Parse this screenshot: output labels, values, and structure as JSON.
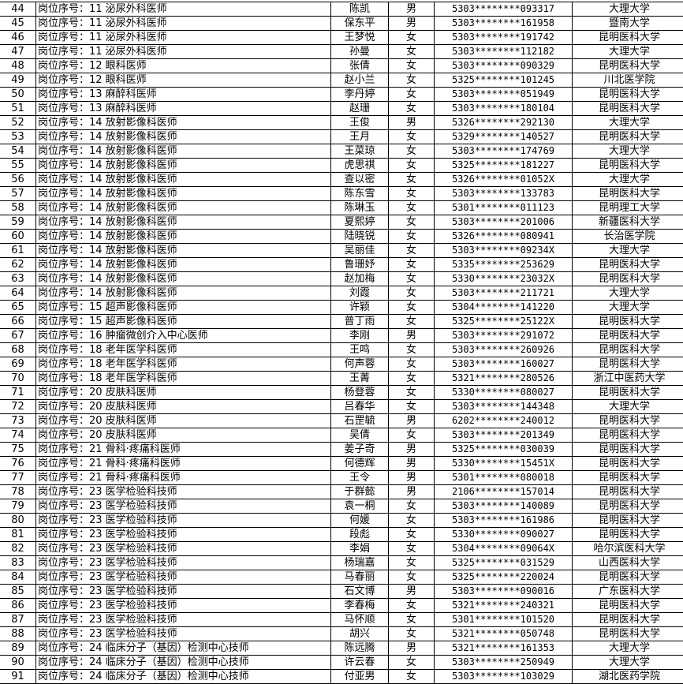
{
  "rows": [
    [
      "44",
      "岗位序号：11 泌尿外科医师",
      "陈凯",
      "男",
      "5303********093317",
      "大理大学"
    ],
    [
      "45",
      "岗位序号：11 泌尿外科医师",
      "保东平",
      "男",
      "5303********161958",
      "暨南大学"
    ],
    [
      "46",
      "岗位序号：11 泌尿外科医师",
      "王梦悦",
      "女",
      "5303********191742",
      "昆明医科大学"
    ],
    [
      "47",
      "岗位序号：11 泌尿外科医师",
      "孙曼",
      "女",
      "5303********112182",
      "大理大学"
    ],
    [
      "48",
      "岗位序号：12 眼科医师",
      "张倩",
      "女",
      "5303********090329",
      "昆明医科大学"
    ],
    [
      "49",
      "岗位序号：12 眼科医师",
      "赵小兰",
      "女",
      "5325********101245",
      "川北医学院"
    ],
    [
      "50",
      "岗位序号：13 麻醉科医师",
      "李丹婷",
      "女",
      "5303********051949",
      "昆明医科大学"
    ],
    [
      "51",
      "岗位序号：13 麻醉科医师",
      "赵珊",
      "女",
      "5303********180104",
      "昆明医科大学"
    ],
    [
      "52",
      "岗位序号：14 放射影像科医师",
      "王俊",
      "男",
      "5326********292130",
      "大理大学"
    ],
    [
      "53",
      "岗位序号：14 放射影像科医师",
      "王月",
      "女",
      "5329********140527",
      "昆明医科大学"
    ],
    [
      "54",
      "岗位序号：14 放射影像科医师",
      "王菜琼",
      "女",
      "5303********174769",
      "大理大学"
    ],
    [
      "55",
      "岗位序号：14 放射影像科医师",
      "虎思祺",
      "女",
      "5325********181227",
      "昆明医科大学"
    ],
    [
      "56",
      "岗位序号：14 放射影像科医师",
      "查以密",
      "女",
      "5326********01052X",
      "大理大学"
    ],
    [
      "57",
      "岗位序号：14 放射影像科医师",
      "陈东雪",
      "女",
      "5303********133783",
      "昆明医科大学"
    ],
    [
      "58",
      "岗位序号：14 放射影像科医师",
      "陈琳玉",
      "女",
      "5301********011123",
      "昆明理工大学"
    ],
    [
      "59",
      "岗位序号：14 放射影像科医师",
      "夏熙婷",
      "女",
      "5303********201006",
      "新疆医科大学"
    ],
    [
      "60",
      "岗位序号：14 放射影像科医师",
      "陆晓锐",
      "女",
      "5326********080941",
      "长治医学院"
    ],
    [
      "61",
      "岗位序号：14 放射影像科医师",
      "吴丽佳",
      "女",
      "5303********09234X",
      "大理大学"
    ],
    [
      "62",
      "岗位序号：14 放射影像科医师",
      "鲁珊妤",
      "女",
      "5335********253629",
      "昆明医科大学"
    ],
    [
      "63",
      "岗位序号：14 放射影像科医师",
      "赵加梅",
      "女",
      "5330********23032X",
      "昆明医科大学"
    ],
    [
      "64",
      "岗位序号：14 放射影像科医师",
      "刘霞",
      "女",
      "5303********211721",
      "大理大学"
    ],
    [
      "65",
      "岗位序号：15 超声影像科医师",
      "许颖",
      "女",
      "5304********141220",
      "大理大学"
    ],
    [
      "66",
      "岗位序号：15 超声影像科医师",
      "普丁雨",
      "女",
      "5325********25122X",
      "昆明医科大学"
    ],
    [
      "67",
      "岗位序号：16 肿瘤微创介入中心医师",
      "李刚",
      "男",
      "5303********291072",
      "昆明医科大学"
    ],
    [
      "68",
      "岗位序号：18 老年医学科医师",
      "王鸣",
      "女",
      "5303********260926",
      "昆明医科大学"
    ],
    [
      "69",
      "岗位序号：18 老年医学科医师",
      "何声蓉",
      "女",
      "5303********160027",
      "昆明医科大学"
    ],
    [
      "70",
      "岗位序号：18 老年医学科医师",
      "王菁",
      "女",
      "5321********280526",
      "浙江中医药大学"
    ],
    [
      "71",
      "岗位序号：20 皮肤科医师",
      "杨登蓉",
      "女",
      "5330********080027",
      "昆明医科大学"
    ],
    [
      "72",
      "岗位序号：20 皮肤科医师",
      "吕春华",
      "女",
      "5303********144348",
      "大理大学"
    ],
    [
      "73",
      "岗位序号：20 皮肤科医师",
      "石罡毓",
      "男",
      "6202********240012",
      "昆明医科大学"
    ],
    [
      "74",
      "岗位序号：20 皮肤科医师",
      "吴倩",
      "女",
      "5303********201349",
      "昆明医科大学"
    ],
    [
      "75",
      "岗位序号：21 骨科·疼痛科医师",
      "姜子奇",
      "男",
      "5325********030039",
      "昆明医科大学"
    ],
    [
      "76",
      "岗位序号：21 骨科·疼痛科医师",
      "何德辉",
      "男",
      "5330********15451X",
      "昆明医科大学"
    ],
    [
      "77",
      "岗位序号：21 骨科·疼痛科医师",
      "王令",
      "男",
      "5301********080018",
      "昆明医科大学"
    ],
    [
      "78",
      "岗位序号：23 医学检验科技师",
      "于群懿",
      "男",
      "2106********157014",
      "昆明医科大学"
    ],
    [
      "79",
      "岗位序号：23 医学检验科技师",
      "袁一桐",
      "女",
      "5303********140089",
      "昆明医科大学"
    ],
    [
      "80",
      "岗位序号：23 医学检验科技师",
      "何媛",
      "女",
      "5303********161986",
      "昆明医科大学"
    ],
    [
      "81",
      "岗位序号：23 医学检验科技师",
      "段彪",
      "女",
      "5330********090027",
      "昆明医科大学"
    ],
    [
      "82",
      "岗位序号：23 医学检验科技师",
      "李娟",
      "女",
      "5304********09064X",
      "哈尔滨医科大学"
    ],
    [
      "83",
      "岗位序号：23 医学检验科技师",
      "杨瑞嘉",
      "女",
      "5325********031529",
      "山西医科大学"
    ],
    [
      "84",
      "岗位序号：23 医学检验科技师",
      "马春丽",
      "女",
      "5325********220024",
      "昆明医科大学"
    ],
    [
      "85",
      "岗位序号：23 医学检验科技师",
      "石文博",
      "男",
      "5303********090016",
      "广东医科大学"
    ],
    [
      "86",
      "岗位序号：23 医学检验科技师",
      "李春梅",
      "女",
      "5321********240321",
      "昆明医科大学"
    ],
    [
      "87",
      "岗位序号：23 医学检验科技师",
      "马怀顺",
      "女",
      "5301********101520",
      "昆明医科大学"
    ],
    [
      "88",
      "岗位序号：23 医学检验科技师",
      "胡兴",
      "女",
      "5321********050748",
      "昆明医科大学"
    ],
    [
      "89",
      "岗位序号：24 临床分子（基因）检测中心技师",
      "陈远腾",
      "男",
      "5321********161353",
      "大理大学"
    ],
    [
      "90",
      "岗位序号：24 临床分子（基因）检测中心技师",
      "许云春",
      "女",
      "5303********250949",
      "大理大学"
    ],
    [
      "91",
      "岗位序号：24 临床分子（基因）检测中心技师",
      "付亚男",
      "女",
      "5303********103029",
      "湖北医药学院"
    ]
  ]
}
